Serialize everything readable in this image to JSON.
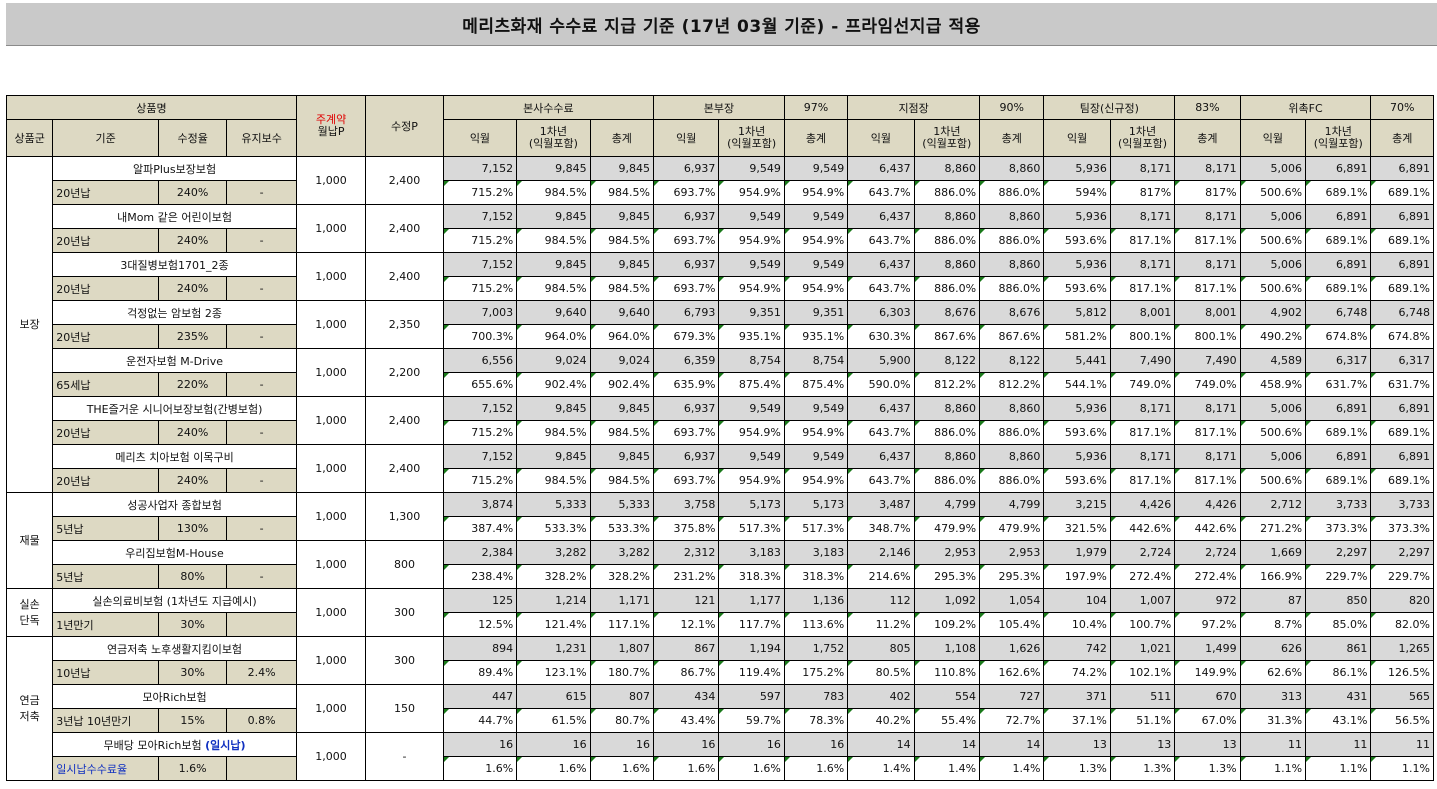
{
  "title": "메리츠화재 수수료 지급 기준 (17년 03월 기준) - 프라임선지급 적용",
  "header": {
    "product_name": "상품명",
    "main_premium_line1": "주계약",
    "main_premium_line2": "월납P",
    "revised_p": "수정P",
    "hq_commission": "본사수수료",
    "divisions": [
      {
        "name": "본부장",
        "pct": "97%"
      },
      {
        "name": "지점장",
        "pct": "90%"
      },
      {
        "name": "팀장(신규정)",
        "pct": "83%"
      },
      {
        "name": "위촉FC",
        "pct": "70%"
      }
    ],
    "col_group": "상품군",
    "col_basis": "기준",
    "col_rate": "수정율",
    "col_maint": "유지보수",
    "col_next_month": "익월",
    "col_year1_line1": "1차년",
    "col_year1_line2": "(익월포함)",
    "col_total": "총계"
  },
  "groups": [
    {
      "name": "보장",
      "products": [
        {
          "name": "알파Plus보장보험",
          "basis": "20년납",
          "rate": "240%",
          "maint": "-",
          "p": "1,000",
          "rp": "2,400",
          "amt": [
            "7,152",
            "9,845",
            "9,845",
            "6,937",
            "9,549",
            "9,549",
            "6,437",
            "8,860",
            "8,860",
            "5,936",
            "8,171",
            "8,171",
            "5,006",
            "6,891",
            "6,891"
          ],
          "pct": [
            "715.2%",
            "984.5%",
            "984.5%",
            "693.7%",
            "954.9%",
            "954.9%",
            "643.7%",
            "886.0%",
            "886.0%",
            "594%",
            "817%",
            "817%",
            "500.6%",
            "689.1%",
            "689.1%"
          ]
        },
        {
          "name": "내Mom 같은 어린이보험",
          "basis": "20년납",
          "rate": "240%",
          "maint": "-",
          "p": "1,000",
          "rp": "2,400",
          "amt": [
            "7,152",
            "9,845",
            "9,845",
            "6,937",
            "9,549",
            "9,549",
            "6,437",
            "8,860",
            "8,860",
            "5,936",
            "8,171",
            "8,171",
            "5,006",
            "6,891",
            "6,891"
          ],
          "pct": [
            "715.2%",
            "984.5%",
            "984.5%",
            "693.7%",
            "954.9%",
            "954.9%",
            "643.7%",
            "886.0%",
            "886.0%",
            "593.6%",
            "817.1%",
            "817.1%",
            "500.6%",
            "689.1%",
            "689.1%"
          ]
        },
        {
          "name": "3대질병보험1701_2종",
          "basis": "20년납",
          "rate": "240%",
          "maint": "-",
          "p": "1,000",
          "rp": "2,400",
          "amt": [
            "7,152",
            "9,845",
            "9,845",
            "6,937",
            "9,549",
            "9,549",
            "6,437",
            "8,860",
            "8,860",
            "5,936",
            "8,171",
            "8,171",
            "5,006",
            "6,891",
            "6,891"
          ],
          "pct": [
            "715.2%",
            "984.5%",
            "984.5%",
            "693.7%",
            "954.9%",
            "954.9%",
            "643.7%",
            "886.0%",
            "886.0%",
            "593.6%",
            "817.1%",
            "817.1%",
            "500.6%",
            "689.1%",
            "689.1%"
          ]
        },
        {
          "name": "걱정없는 암보험 2종",
          "basis": "20년납",
          "rate": "235%",
          "maint": "-",
          "p": "1,000",
          "rp": "2,350",
          "amt": [
            "7,003",
            "9,640",
            "9,640",
            "6,793",
            "9,351",
            "9,351",
            "6,303",
            "8,676",
            "8,676",
            "5,812",
            "8,001",
            "8,001",
            "4,902",
            "6,748",
            "6,748"
          ],
          "pct": [
            "700.3%",
            "964.0%",
            "964.0%",
            "679.3%",
            "935.1%",
            "935.1%",
            "630.3%",
            "867.6%",
            "867.6%",
            "581.2%",
            "800.1%",
            "800.1%",
            "490.2%",
            "674.8%",
            "674.8%"
          ]
        },
        {
          "name": "운전자보험 M-Drive",
          "basis": "65세납",
          "rate": "220%",
          "maint": "-",
          "p": "1,000",
          "rp": "2,200",
          "amt": [
            "6,556",
            "9,024",
            "9,024",
            "6,359",
            "8,754",
            "8,754",
            "5,900",
            "8,122",
            "8,122",
            "5,441",
            "7,490",
            "7,490",
            "4,589",
            "6,317",
            "6,317"
          ],
          "pct": [
            "655.6%",
            "902.4%",
            "902.4%",
            "635.9%",
            "875.4%",
            "875.4%",
            "590.0%",
            "812.2%",
            "812.2%",
            "544.1%",
            "749.0%",
            "749.0%",
            "458.9%",
            "631.7%",
            "631.7%"
          ]
        },
        {
          "name": "THE즐거운 시니어보장보험(간병보험)",
          "basis": "20년납",
          "rate": "240%",
          "maint": "-",
          "p": "1,000",
          "rp": "2,400",
          "amt": [
            "7,152",
            "9,845",
            "9,845",
            "6,937",
            "9,549",
            "9,549",
            "6,437",
            "8,860",
            "8,860",
            "5,936",
            "8,171",
            "8,171",
            "5,006",
            "6,891",
            "6,891"
          ],
          "pct": [
            "715.2%",
            "984.5%",
            "984.5%",
            "693.7%",
            "954.9%",
            "954.9%",
            "643.7%",
            "886.0%",
            "886.0%",
            "593.6%",
            "817.1%",
            "817.1%",
            "500.6%",
            "689.1%",
            "689.1%"
          ]
        },
        {
          "name": "메리츠 치아보험 이목구비",
          "basis": "20년납",
          "rate": "240%",
          "maint": "-",
          "p": "1,000",
          "rp": "2,400",
          "amt": [
            "7,152",
            "9,845",
            "9,845",
            "6,937",
            "9,549",
            "9,549",
            "6,437",
            "8,860",
            "8,860",
            "5,936",
            "8,171",
            "8,171",
            "5,006",
            "6,891",
            "6,891"
          ],
          "pct": [
            "715.2%",
            "984.5%",
            "984.5%",
            "693.7%",
            "954.9%",
            "954.9%",
            "643.7%",
            "886.0%",
            "886.0%",
            "593.6%",
            "817.1%",
            "817.1%",
            "500.6%",
            "689.1%",
            "689.1%"
          ]
        }
      ]
    },
    {
      "name": "재물",
      "products": [
        {
          "name": "성공사업자 종합보험",
          "basis": "5년납",
          "rate": "130%",
          "maint": "-",
          "p": "1,000",
          "rp": "1,300",
          "amt": [
            "3,874",
            "5,333",
            "5,333",
            "3,758",
            "5,173",
            "5,173",
            "3,487",
            "4,799",
            "4,799",
            "3,215",
            "4,426",
            "4,426",
            "2,712",
            "3,733",
            "3,733"
          ],
          "pct": [
            "387.4%",
            "533.3%",
            "533.3%",
            "375.8%",
            "517.3%",
            "517.3%",
            "348.7%",
            "479.9%",
            "479.9%",
            "321.5%",
            "442.6%",
            "442.6%",
            "271.2%",
            "373.3%",
            "373.3%"
          ]
        },
        {
          "name": "우리집보험M-House",
          "basis": "5년납",
          "rate": "80%",
          "maint": "-",
          "p": "1,000",
          "rp": "800",
          "amt": [
            "2,384",
            "3,282",
            "3,282",
            "2,312",
            "3,183",
            "3,183",
            "2,146",
            "2,953",
            "2,953",
            "1,979",
            "2,724",
            "2,724",
            "1,669",
            "2,297",
            "2,297"
          ],
          "pct": [
            "238.4%",
            "328.2%",
            "328.2%",
            "231.2%",
            "318.3%",
            "318.3%",
            "214.6%",
            "295.3%",
            "295.3%",
            "197.9%",
            "272.4%",
            "272.4%",
            "166.9%",
            "229.7%",
            "229.7%"
          ]
        }
      ]
    },
    {
      "name": "실손\n단독",
      "products": [
        {
          "name": "실손의료비보험 (1차년도 지급예시)",
          "basis": "1년만기",
          "rate": "30%",
          "maint": "",
          "p": "1,000",
          "rp": "300",
          "amt": [
            "125",
            "1,214",
            "1,171",
            "121",
            "1,177",
            "1,136",
            "112",
            "1,092",
            "1,054",
            "104",
            "1,007",
            "972",
            "87",
            "850",
            "820"
          ],
          "pct": [
            "12.5%",
            "121.4%",
            "117.1%",
            "12.1%",
            "117.7%",
            "113.6%",
            "11.2%",
            "109.2%",
            "105.4%",
            "10.4%",
            "100.7%",
            "97.2%",
            "8.7%",
            "85.0%",
            "82.0%"
          ]
        }
      ]
    },
    {
      "name": "연금\n저축",
      "products": [
        {
          "name": "연금저축 노후생활지킴이보험",
          "basis": "10년납",
          "rate": "30%",
          "maint": "2.4%",
          "p": "1,000",
          "rp": "300",
          "amt": [
            "894",
            "1,231",
            "1,807",
            "867",
            "1,194",
            "1,752",
            "805",
            "1,108",
            "1,626",
            "742",
            "1,021",
            "1,499",
            "626",
            "861",
            "1,265"
          ],
          "pct": [
            "89.4%",
            "123.1%",
            "180.7%",
            "86.7%",
            "119.4%",
            "175.2%",
            "80.5%",
            "110.8%",
            "162.6%",
            "74.2%",
            "102.1%",
            "149.9%",
            "62.6%",
            "86.1%",
            "126.5%"
          ]
        },
        {
          "name": "모아Rich보험",
          "basis": "3년납 10년만기",
          "rate": "15%",
          "maint": "0.8%",
          "p": "1,000",
          "rp": "150",
          "amt": [
            "447",
            "615",
            "807",
            "434",
            "597",
            "783",
            "402",
            "554",
            "727",
            "371",
            "511",
            "670",
            "313",
            "431",
            "565"
          ],
          "pct": [
            "44.7%",
            "61.5%",
            "80.7%",
            "43.4%",
            "59.7%",
            "78.3%",
            "40.2%",
            "55.4%",
            "72.7%",
            "37.1%",
            "51.1%",
            "67.0%",
            "31.3%",
            "43.1%",
            "56.5%"
          ]
        },
        {
          "name": "무배당 모아Rich보험",
          "name_suffix": "(일시납)",
          "basis": "일시납수수료율",
          "rate": "1.6%",
          "maint": "",
          "p": "1,000",
          "rp": "-",
          "amt": [
            "16",
            "16",
            "16",
            "16",
            "16",
            "16",
            "14",
            "14",
            "14",
            "13",
            "13",
            "13",
            "11",
            "11",
            "11"
          ],
          "pct": [
            "1.6%",
            "1.6%",
            "1.6%",
            "1.6%",
            "1.6%",
            "1.6%",
            "1.4%",
            "1.4%",
            "1.4%",
            "1.3%",
            "1.3%",
            "1.3%",
            "1.1%",
            "1.1%",
            "1.1%"
          ]
        }
      ]
    }
  ]
}
